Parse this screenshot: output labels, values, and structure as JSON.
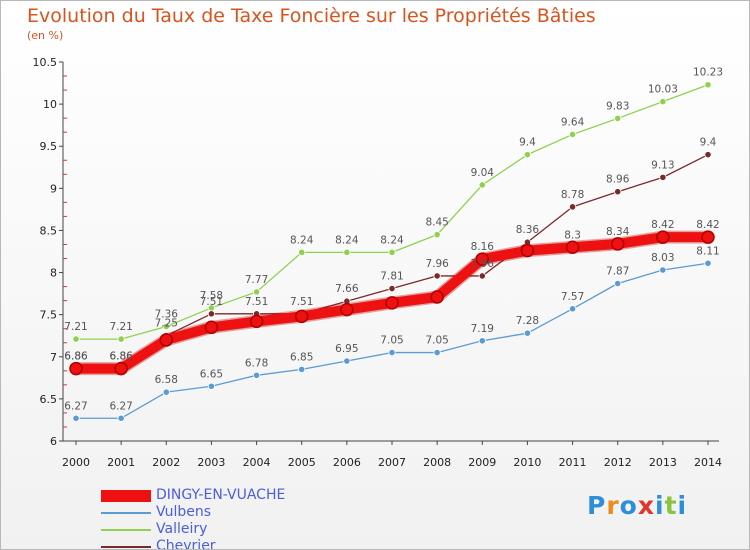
{
  "title": "Evolution du Taux de Taxe Foncière sur les Propriétés Bâties",
  "unit": "(en %)",
  "brand": {
    "letters": [
      "P",
      "r",
      "o",
      "x",
      "i",
      "t",
      "i"
    ],
    "colors": [
      "#2d8fd9",
      "#f08a1c",
      "#2d8fd9",
      "#e0362e",
      "#2d8fd9",
      "#8ac43f",
      "#2d8fd9"
    ]
  },
  "chart_data": {
    "type": "line",
    "x": [
      "2000",
      "2001",
      "2002",
      "2003",
      "2004",
      "2005",
      "2006",
      "2007",
      "2008",
      "2009",
      "2010",
      "2011",
      "2012",
      "2013",
      "2014"
    ],
    "ylim": [
      6,
      10.5
    ],
    "yticks": [
      "6",
      "6.5",
      "7",
      "7.5",
      "8",
      "8.5",
      "9",
      "9.5",
      "10",
      "10.5"
    ],
    "grid": false,
    "legend_position": "bottom-left",
    "series": [
      {
        "name": "DINGY-EN-VUACHE",
        "color": "#ee1111",
        "values": [
          6.86,
          6.86,
          7.2,
          7.35,
          7.42,
          7.48,
          7.56,
          7.64,
          7.71,
          8.16,
          8.26,
          8.3,
          8.34,
          8.42,
          8.42
        ],
        "labels": [
          "6.86",
          "6.86",
          "",
          "",
          "",
          "",
          "",
          "",
          "",
          "8.16",
          "",
          "8.3",
          "8.34",
          "8.42",
          "8.42"
        ]
      },
      {
        "name": "Vulbens",
        "color": "#5b9bd5",
        "values": [
          6.27,
          6.27,
          6.58,
          6.65,
          6.78,
          6.85,
          6.95,
          7.05,
          7.05,
          7.19,
          7.28,
          7.57,
          7.87,
          8.03,
          8.11
        ],
        "labels": [
          "6.27",
          "6.27",
          "6.58",
          "6.65",
          "6.78",
          "6.85",
          "6.95",
          "7.05",
          "7.05",
          "7.19",
          "7.28",
          "7.57",
          "7.87",
          "8.03",
          "8.11"
        ]
      },
      {
        "name": "Valleiry",
        "color": "#8fd14f",
        "values": [
          7.21,
          7.21,
          7.36,
          7.58,
          7.77,
          8.24,
          8.24,
          8.24,
          8.45,
          9.04,
          9.4,
          9.64,
          9.83,
          10.03,
          10.23
        ],
        "labels": [
          "7.21",
          "7.21",
          "7.36",
          "7.58",
          "7.77",
          "8.24",
          "8.24",
          "8.24",
          "8.45",
          "9.04",
          "9.4",
          "9.64",
          "9.83",
          "10.03",
          "10.23"
        ]
      },
      {
        "name": "Chevrier",
        "color": "#7a2a2a",
        "values": [
          6.86,
          6.86,
          7.25,
          7.51,
          7.51,
          7.51,
          7.66,
          7.81,
          7.96,
          7.96,
          8.36,
          8.78,
          8.96,
          9.13,
          9.4
        ],
        "labels": [
          "6.86",
          "6.86",
          "7.25",
          "7.51",
          "7.51",
          "7.51",
          "7.66",
          "7.81",
          "7.96",
          "7.96",
          "8.36",
          "8.78",
          "8.96",
          "9.13",
          "9.4"
        ]
      }
    ]
  }
}
